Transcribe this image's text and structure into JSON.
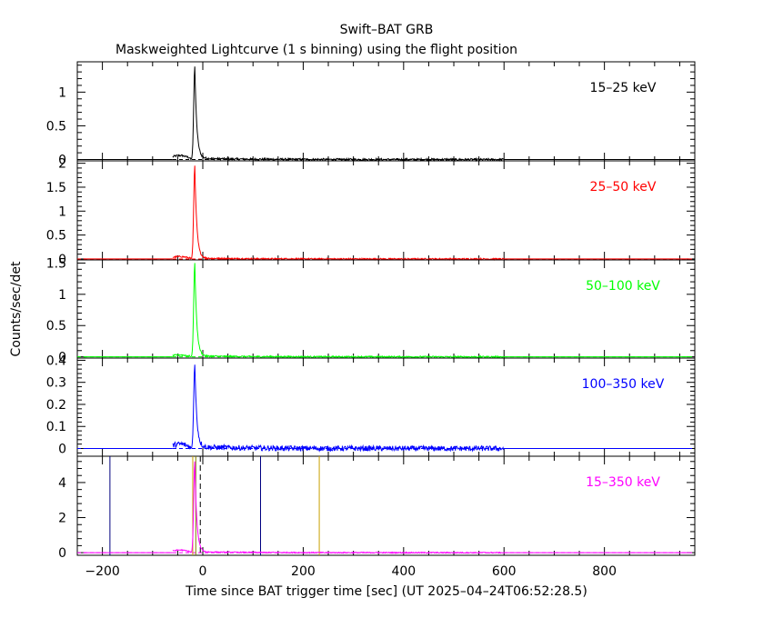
{
  "title": "Swift–BAT GRB",
  "subtitle": "Maskweighted Lightcurve (1 s binning) using the flight position",
  "ylabel": "Counts/sec/det",
  "xlabel": "Time since BAT trigger time [sec] (UT 2025–04–24T06:52:28.5)",
  "colors": {
    "panel1": "#000000",
    "panel2": "#ff0000",
    "panel3": "#00ff00",
    "panel4": "#0000ff",
    "panel5": "#ff00ff",
    "frame": "#000000",
    "marker_navy": "#000080",
    "marker_gold": "#c8a000",
    "marker_olive": "#808000"
  },
  "chart_data": {
    "type": "line",
    "xlim": [
      -250,
      980
    ],
    "x_ticks": [
      -200,
      0,
      200,
      400,
      600,
      800
    ],
    "x_tick_labels": [
      "−200",
      "0",
      "200",
      "400",
      "600",
      "800"
    ],
    "peak_time": -16,
    "data_range": [
      -60,
      600
    ],
    "panels": [
      {
        "band": "15–25 keV",
        "ylim": [
          -0.02,
          1.45
        ],
        "y_ticks": [
          0,
          0.5,
          1
        ],
        "y_tick_labels": [
          "0",
          "0.5",
          "1"
        ],
        "peak": 1.38,
        "precursor": 0.06,
        "tail": 0.02,
        "noise": 0.015
      },
      {
        "band": "25–50 keV",
        "ylim": [
          -0.02,
          2.05
        ],
        "y_ticks": [
          0,
          0.5,
          1,
          1.5,
          2
        ],
        "y_tick_labels": [
          "0",
          "0.5",
          "1",
          "1.5",
          "2"
        ],
        "peak": 1.95,
        "precursor": 0.05,
        "tail": 0.02,
        "noise": 0.015
      },
      {
        "band": "50–100 keV",
        "ylim": [
          -0.02,
          1.55
        ],
        "y_ticks": [
          0,
          0.5,
          1,
          1.5
        ],
        "y_tick_labels": [
          "0",
          "0.5",
          "1",
          "1.5"
        ],
        "peak": 1.5,
        "precursor": 0.03,
        "tail": 0.015,
        "noise": 0.012
      },
      {
        "band": "100–350 keV",
        "ylim": [
          -0.035,
          0.41
        ],
        "y_ticks": [
          0,
          0.1,
          0.2,
          0.3,
          0.4
        ],
        "y_tick_labels": [
          "0",
          "0.1",
          "0.2",
          "0.3",
          "0.4"
        ],
        "peak": 0.38,
        "precursor": 0.02,
        "tail": 0.008,
        "noise": 0.012
      },
      {
        "band": "15–350 keV",
        "ylim": [
          -0.15,
          5.5
        ],
        "y_ticks": [
          0,
          2,
          4
        ],
        "y_tick_labels": [
          "0",
          "2",
          "4"
        ],
        "peak": 5.2,
        "precursor": 0.15,
        "tail": 0.05,
        "noise": 0.03
      }
    ],
    "markers": [
      {
        "x": -185,
        "color": "marker_navy",
        "style": "solid"
      },
      {
        "x": -20,
        "color": "marker_gold",
        "style": "solid"
      },
      {
        "x": -14,
        "color": "marker_olive",
        "style": "solid"
      },
      {
        "x": -5,
        "color": "frame",
        "style": "dashed"
      },
      {
        "x": 115,
        "color": "marker_navy",
        "style": "solid"
      },
      {
        "x": 232,
        "color": "marker_gold",
        "style": "solid"
      }
    ]
  }
}
